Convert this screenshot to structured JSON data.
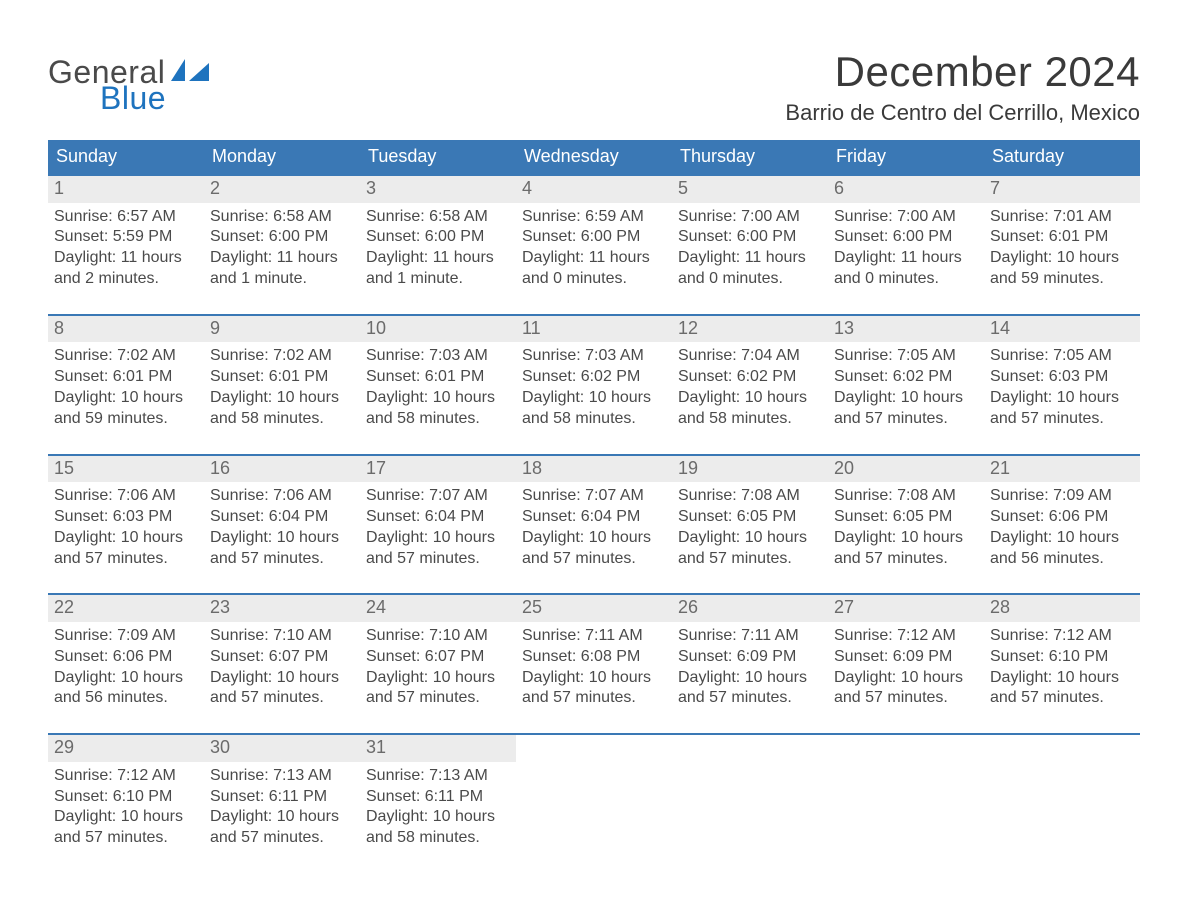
{
  "brand": {
    "word1": "General",
    "word2": "Blue",
    "accent_color": "#1e73be",
    "text_color": "#4a4a4a"
  },
  "title": "December 2024",
  "location": "Barrio de Centro del Cerrillo, Mexico",
  "colors": {
    "header_bg": "#3a78b5",
    "header_text": "#ffffff",
    "week_border": "#3a78b5",
    "daynum_bg": "#ececec",
    "daynum_text": "#6b6b6b",
    "body_text": "#4a4a4a",
    "page_bg": "#ffffff"
  },
  "days_of_week": [
    "Sunday",
    "Monday",
    "Tuesday",
    "Wednesday",
    "Thursday",
    "Friday",
    "Saturday"
  ],
  "weeks": [
    [
      {
        "n": "1",
        "sunrise": "Sunrise: 6:57 AM",
        "sunset": "Sunset: 5:59 PM",
        "d1": "Daylight: 11 hours",
        "d2": "and 2 minutes."
      },
      {
        "n": "2",
        "sunrise": "Sunrise: 6:58 AM",
        "sunset": "Sunset: 6:00 PM",
        "d1": "Daylight: 11 hours",
        "d2": "and 1 minute."
      },
      {
        "n": "3",
        "sunrise": "Sunrise: 6:58 AM",
        "sunset": "Sunset: 6:00 PM",
        "d1": "Daylight: 11 hours",
        "d2": "and 1 minute."
      },
      {
        "n": "4",
        "sunrise": "Sunrise: 6:59 AM",
        "sunset": "Sunset: 6:00 PM",
        "d1": "Daylight: 11 hours",
        "d2": "and 0 minutes."
      },
      {
        "n": "5",
        "sunrise": "Sunrise: 7:00 AM",
        "sunset": "Sunset: 6:00 PM",
        "d1": "Daylight: 11 hours",
        "d2": "and 0 minutes."
      },
      {
        "n": "6",
        "sunrise": "Sunrise: 7:00 AM",
        "sunset": "Sunset: 6:00 PM",
        "d1": "Daylight: 11 hours",
        "d2": "and 0 minutes."
      },
      {
        "n": "7",
        "sunrise": "Sunrise: 7:01 AM",
        "sunset": "Sunset: 6:01 PM",
        "d1": "Daylight: 10 hours",
        "d2": "and 59 minutes."
      }
    ],
    [
      {
        "n": "8",
        "sunrise": "Sunrise: 7:02 AM",
        "sunset": "Sunset: 6:01 PM",
        "d1": "Daylight: 10 hours",
        "d2": "and 59 minutes."
      },
      {
        "n": "9",
        "sunrise": "Sunrise: 7:02 AM",
        "sunset": "Sunset: 6:01 PM",
        "d1": "Daylight: 10 hours",
        "d2": "and 58 minutes."
      },
      {
        "n": "10",
        "sunrise": "Sunrise: 7:03 AM",
        "sunset": "Sunset: 6:01 PM",
        "d1": "Daylight: 10 hours",
        "d2": "and 58 minutes."
      },
      {
        "n": "11",
        "sunrise": "Sunrise: 7:03 AM",
        "sunset": "Sunset: 6:02 PM",
        "d1": "Daylight: 10 hours",
        "d2": "and 58 minutes."
      },
      {
        "n": "12",
        "sunrise": "Sunrise: 7:04 AM",
        "sunset": "Sunset: 6:02 PM",
        "d1": "Daylight: 10 hours",
        "d2": "and 58 minutes."
      },
      {
        "n": "13",
        "sunrise": "Sunrise: 7:05 AM",
        "sunset": "Sunset: 6:02 PM",
        "d1": "Daylight: 10 hours",
        "d2": "and 57 minutes."
      },
      {
        "n": "14",
        "sunrise": "Sunrise: 7:05 AM",
        "sunset": "Sunset: 6:03 PM",
        "d1": "Daylight: 10 hours",
        "d2": "and 57 minutes."
      }
    ],
    [
      {
        "n": "15",
        "sunrise": "Sunrise: 7:06 AM",
        "sunset": "Sunset: 6:03 PM",
        "d1": "Daylight: 10 hours",
        "d2": "and 57 minutes."
      },
      {
        "n": "16",
        "sunrise": "Sunrise: 7:06 AM",
        "sunset": "Sunset: 6:04 PM",
        "d1": "Daylight: 10 hours",
        "d2": "and 57 minutes."
      },
      {
        "n": "17",
        "sunrise": "Sunrise: 7:07 AM",
        "sunset": "Sunset: 6:04 PM",
        "d1": "Daylight: 10 hours",
        "d2": "and 57 minutes."
      },
      {
        "n": "18",
        "sunrise": "Sunrise: 7:07 AM",
        "sunset": "Sunset: 6:04 PM",
        "d1": "Daylight: 10 hours",
        "d2": "and 57 minutes."
      },
      {
        "n": "19",
        "sunrise": "Sunrise: 7:08 AM",
        "sunset": "Sunset: 6:05 PM",
        "d1": "Daylight: 10 hours",
        "d2": "and 57 minutes."
      },
      {
        "n": "20",
        "sunrise": "Sunrise: 7:08 AM",
        "sunset": "Sunset: 6:05 PM",
        "d1": "Daylight: 10 hours",
        "d2": "and 57 minutes."
      },
      {
        "n": "21",
        "sunrise": "Sunrise: 7:09 AM",
        "sunset": "Sunset: 6:06 PM",
        "d1": "Daylight: 10 hours",
        "d2": "and 56 minutes."
      }
    ],
    [
      {
        "n": "22",
        "sunrise": "Sunrise: 7:09 AM",
        "sunset": "Sunset: 6:06 PM",
        "d1": "Daylight: 10 hours",
        "d2": "and 56 minutes."
      },
      {
        "n": "23",
        "sunrise": "Sunrise: 7:10 AM",
        "sunset": "Sunset: 6:07 PM",
        "d1": "Daylight: 10 hours",
        "d2": "and 57 minutes."
      },
      {
        "n": "24",
        "sunrise": "Sunrise: 7:10 AM",
        "sunset": "Sunset: 6:07 PM",
        "d1": "Daylight: 10 hours",
        "d2": "and 57 minutes."
      },
      {
        "n": "25",
        "sunrise": "Sunrise: 7:11 AM",
        "sunset": "Sunset: 6:08 PM",
        "d1": "Daylight: 10 hours",
        "d2": "and 57 minutes."
      },
      {
        "n": "26",
        "sunrise": "Sunrise: 7:11 AM",
        "sunset": "Sunset: 6:09 PM",
        "d1": "Daylight: 10 hours",
        "d2": "and 57 minutes."
      },
      {
        "n": "27",
        "sunrise": "Sunrise: 7:12 AM",
        "sunset": "Sunset: 6:09 PM",
        "d1": "Daylight: 10 hours",
        "d2": "and 57 minutes."
      },
      {
        "n": "28",
        "sunrise": "Sunrise: 7:12 AM",
        "sunset": "Sunset: 6:10 PM",
        "d1": "Daylight: 10 hours",
        "d2": "and 57 minutes."
      }
    ],
    [
      {
        "n": "29",
        "sunrise": "Sunrise: 7:12 AM",
        "sunset": "Sunset: 6:10 PM",
        "d1": "Daylight: 10 hours",
        "d2": "and 57 minutes."
      },
      {
        "n": "30",
        "sunrise": "Sunrise: 7:13 AM",
        "sunset": "Sunset: 6:11 PM",
        "d1": "Daylight: 10 hours",
        "d2": "and 57 minutes."
      },
      {
        "n": "31",
        "sunrise": "Sunrise: 7:13 AM",
        "sunset": "Sunset: 6:11 PM",
        "d1": "Daylight: 10 hours",
        "d2": "and 58 minutes."
      },
      {
        "empty": true
      },
      {
        "empty": true
      },
      {
        "empty": true
      },
      {
        "empty": true
      }
    ]
  ]
}
